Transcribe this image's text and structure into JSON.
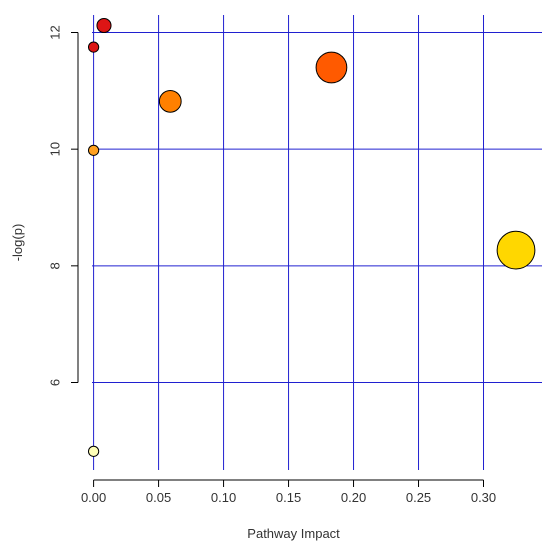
{
  "chart_data": {
    "type": "scatter",
    "title": "",
    "xlabel": "Pathway Impact",
    "ylabel": "-log(p)",
    "xlim": [
      -0.012,
      0.345
    ],
    "ylim": [
      4.5,
      12.3
    ],
    "x_ticks": [
      0.0,
      0.05,
      0.1,
      0.15,
      0.2,
      0.25,
      0.3
    ],
    "x_tick_labels": [
      "0.00",
      "0.05",
      "0.10",
      "0.15",
      "0.20",
      "0.25",
      "0.30"
    ],
    "y_ticks": [
      6,
      8,
      10,
      12
    ],
    "y_tick_labels": [
      "6",
      "8",
      "10",
      "12"
    ],
    "grid": true,
    "grid_color": "#2020d0",
    "points": [
      {
        "x": 0.008,
        "y": 12.12,
        "size": 2.2,
        "color": "#dd1515"
      },
      {
        "x": 0.0,
        "y": 11.75,
        "size": 1.6,
        "color": "#dd1515"
      },
      {
        "x": 0.183,
        "y": 11.4,
        "size": 4.8,
        "color": "#ff5a00"
      },
      {
        "x": 0.059,
        "y": 10.82,
        "size": 3.4,
        "color": "#ff8000"
      },
      {
        "x": 0.0,
        "y": 9.98,
        "size": 1.6,
        "color": "#ffa020"
      },
      {
        "x": 0.325,
        "y": 8.27,
        "size": 5.9,
        "color": "#ffd700"
      },
      {
        "x": 0.0,
        "y": 4.82,
        "size": 1.6,
        "color": "#ffffb8"
      }
    ]
  }
}
